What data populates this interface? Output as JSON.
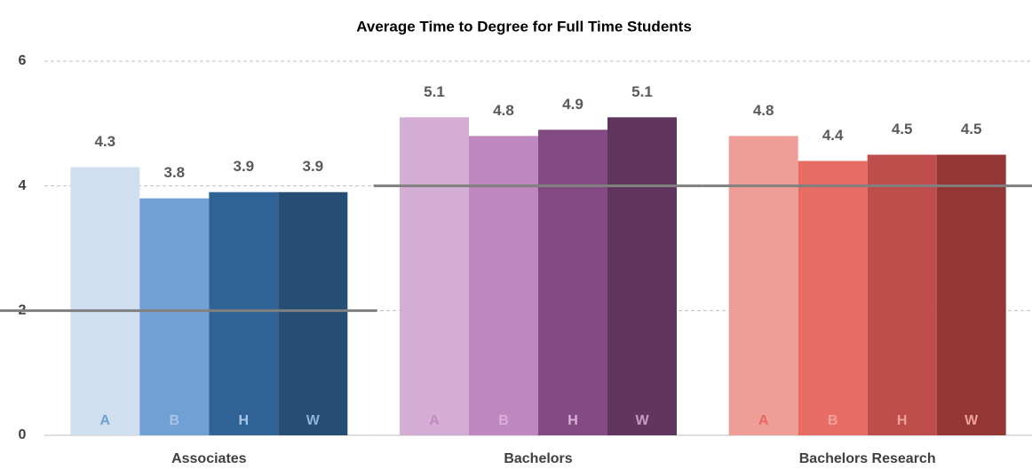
{
  "chart_data": {
    "type": "bar",
    "title": "Average Time to Degree for Full Time Students",
    "categories": [
      "Associates",
      "Bachelors",
      "Bachelors Research"
    ],
    "series": [
      {
        "name": "A",
        "colors": [
          "#d0dff0",
          "#d4aed4",
          "#ef9e97"
        ],
        "label_colors": [
          "#6f9fd0",
          "#c08bbf",
          "#e8675e"
        ],
        "values": [
          4.3,
          5.1,
          4.8
        ]
      },
      {
        "name": "B",
        "colors": [
          "#70a0d4",
          "#bf87bf",
          "#e66c64"
        ],
        "label_colors": [
          "#a9c4e4",
          "#d9b0d8",
          "#f0a09a"
        ],
        "values": [
          3.8,
          4.8,
          4.4
        ]
      },
      {
        "name": "H",
        "colors": [
          "#2f6396",
          "#834a83",
          "#be4d4b"
        ],
        "label_colors": [
          "#a9c4e4",
          "#d9b0d8",
          "#f0a09a"
        ],
        "values": [
          3.9,
          4.9,
          4.5
        ]
      },
      {
        "name": "W",
        "colors": [
          "#264d73",
          "#60365f",
          "#933634"
        ],
        "label_colors": [
          "#8fb3dc",
          "#c69ac6",
          "#f0a09a"
        ],
        "values": [
          3.9,
          5.1,
          4.5
        ]
      }
    ],
    "reference_values": [
      2,
      4,
      4
    ],
    "reference_color": "#808080",
    "ylim": [
      0,
      6
    ],
    "yticks": [
      0,
      2,
      4,
      6
    ],
    "grid": true
  }
}
